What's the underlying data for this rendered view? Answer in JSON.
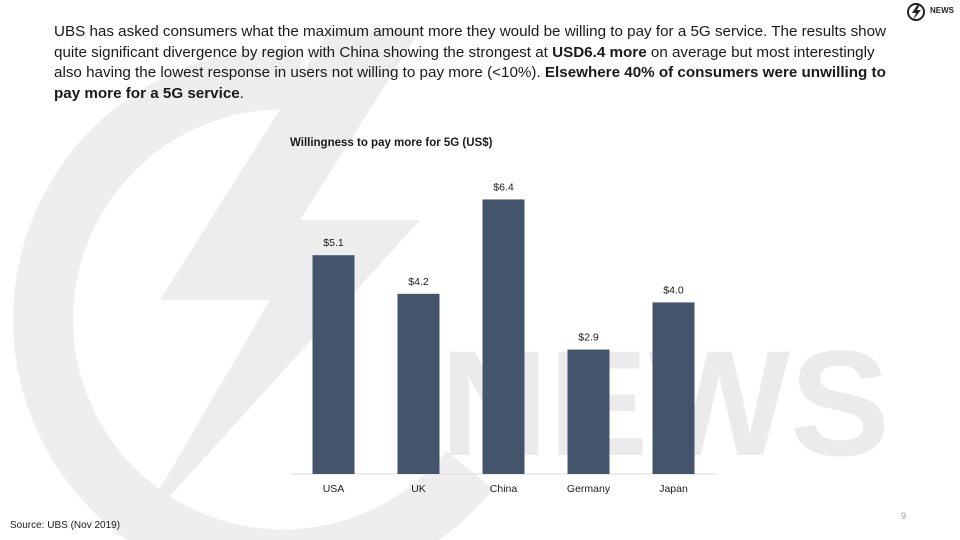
{
  "slide": {
    "logo_text": "NEWS",
    "intro": {
      "s1": "UBS has asked consumers what the maximum amount more they would be willing to pay for a 5G service. The results show quite significant divergence by region with China showing the strongest at ",
      "b1": "USD6.4 more",
      "s2": " on average but most interestingly also having the lowest response in users not willing to pay more (<10%). ",
      "b2": "Elsewhere 40% of consumers were unwilling to pay more for a 5G service",
      "s3": "."
    },
    "source": "Source: UBS (Nov 2019)",
    "page_number": "9"
  },
  "chart_data": {
    "type": "bar",
    "title": "Willingness to pay more for 5G (US$)",
    "categories": [
      "USA",
      "UK",
      "China",
      "Germany",
      "Japan"
    ],
    "values": [
      5.1,
      4.2,
      6.4,
      2.9,
      4.0
    ],
    "data_labels": [
      "$5.1",
      "$4.2",
      "$6.4",
      "$2.9",
      "$4.0"
    ],
    "xlabel": "",
    "ylabel": "",
    "ylim": [
      0,
      6.9
    ],
    "grid": false,
    "bar_color": "#44546a"
  }
}
